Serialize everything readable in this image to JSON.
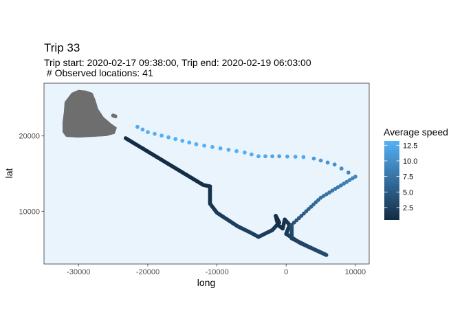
{
  "chart_data": {
    "type": "scatter",
    "title": "Trip 33",
    "subtitle_line1": "Trip start: 2020-02-17 09:38:00, Trip end: 2020-02-19 06:03:00",
    "subtitle_line2": " # Observed locations: 41",
    "xlabel": "long",
    "ylabel": "lat",
    "xlim": [
      -35000,
      12000
    ],
    "ylim": [
      3000,
      27000
    ],
    "x_ticks": [
      -30000,
      -20000,
      -10000,
      0,
      10000
    ],
    "x_tick_labels": [
      "-30000",
      "-20000",
      "-10000",
      "0",
      "10000"
    ],
    "y_ticks": [
      10000,
      20000
    ],
    "y_tick_labels": [
      "10000",
      "20000"
    ],
    "panel_background": "#eaf4fd",
    "land_color": "#6e6e6e",
    "color_scale": {
      "title": "Average speed",
      "min": 0.5,
      "max": 13.2,
      "low_color": "#132b43",
      "high_color": "#56b1f7",
      "ticks": [
        2.5,
        5.0,
        7.5,
        10.0,
        12.5
      ],
      "tick_labels": [
        "2.5",
        "5.0",
        "7.5",
        "10.0",
        "12.5"
      ]
    },
    "land": [
      [
        -32000,
        24500
      ],
      [
        -31000,
        25700
      ],
      [
        -30000,
        26100
      ],
      [
        -29000,
        26000
      ],
      [
        -28000,
        25700
      ],
      [
        -27600,
        24800
      ],
      [
        -27200,
        23600
      ],
      [
        -26400,
        22500
      ],
      [
        -25400,
        21700
      ],
      [
        -24500,
        21100
      ],
      [
        -24800,
        20300
      ],
      [
        -26000,
        20000
      ],
      [
        -28000,
        19900
      ],
      [
        -30000,
        19800
      ],
      [
        -31800,
        19900
      ],
      [
        -32300,
        20500
      ],
      [
        -32300,
        21800
      ],
      [
        -32100,
        23200
      ]
    ],
    "track": [
      {
        "x": -23200,
        "y": 19700,
        "s": 0.7
      },
      {
        "x": -12000,
        "y": 13500,
        "s": 0.8
      },
      {
        "x": -11000,
        "y": 13300,
        "s": 1.0
      },
      {
        "x": -11000,
        "y": 11000,
        "s": 1.3
      },
      {
        "x": -10000,
        "y": 9800,
        "s": 2.0
      },
      {
        "x": -7000,
        "y": 8000,
        "s": 2.5
      },
      {
        "x": -5000,
        "y": 7100,
        "s": 2.5
      },
      {
        "x": -4000,
        "y": 6600,
        "s": 2.3
      },
      {
        "x": -2000,
        "y": 7500,
        "s": 2.0
      },
      {
        "x": -1000,
        "y": 8500,
        "s": 1.5
      },
      {
        "x": -1500,
        "y": 9400,
        "s": 1.0
      },
      {
        "x": -1200,
        "y": 8200,
        "s": 0.8
      },
      {
        "x": -500,
        "y": 7700,
        "s": 1.0
      },
      {
        "x": -200,
        "y": 8900,
        "s": 1.2
      },
      {
        "x": 500,
        "y": 8200,
        "s": 1.5
      },
      {
        "x": 0,
        "y": 7000,
        "s": 2.0
      },
      {
        "x": 2000,
        "y": 5800,
        "s": 3.0
      },
      {
        "x": 5800,
        "y": 4200,
        "s": 3.5
      },
      {
        "x": 3000,
        "y": 5400,
        "s": 3.0
      },
      {
        "x": 800,
        "y": 6400,
        "s": 2.5
      },
      {
        "x": 800,
        "y": 8200,
        "s": 4.0
      },
      {
        "x": 5000,
        "y": 11800,
        "s": 7.0
      },
      {
        "x": 10000,
        "y": 14600,
        "s": 9.0
      },
      {
        "x": 7000,
        "y": 16200,
        "s": 10.0
      },
      {
        "x": 4000,
        "y": 17000,
        "s": 11.0
      },
      {
        "x": 2500,
        "y": 17200,
        "s": 12.5
      },
      {
        "x": -1000,
        "y": 17300,
        "s": 12.0
      },
      {
        "x": -4000,
        "y": 17300,
        "s": 12.5
      },
      {
        "x": -6000,
        "y": 17800,
        "s": 13.0
      },
      {
        "x": -13000,
        "y": 18900,
        "s": 13.0
      },
      {
        "x": -20000,
        "y": 20500,
        "s": 13.0
      },
      {
        "x": -21500,
        "y": 21200,
        "s": 12.5
      }
    ],
    "extra_points": [
      {
        "x": -24700,
        "y": 22600,
        "s": 12.8
      },
      {
        "x": -25000,
        "y": 22700,
        "s": 12.8
      }
    ]
  }
}
